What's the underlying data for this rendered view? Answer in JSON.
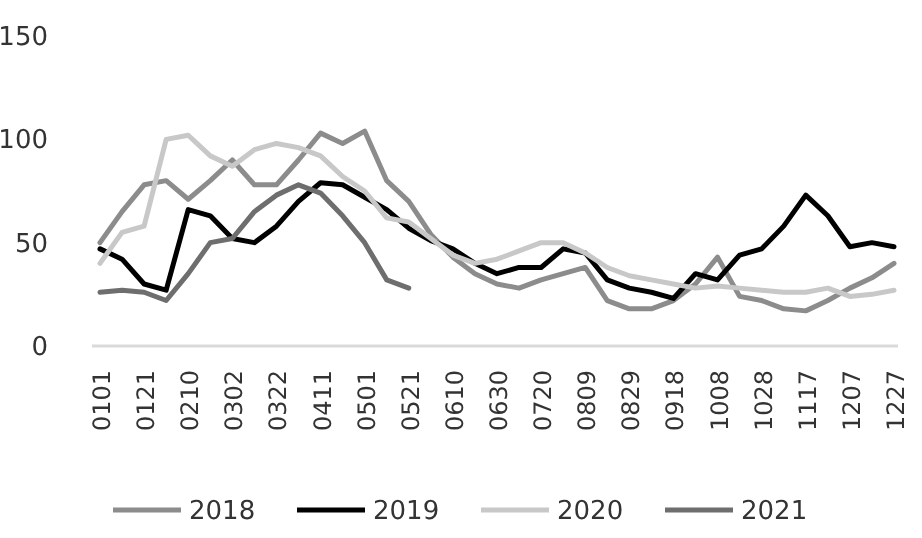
{
  "chart_data": {
    "type": "line",
    "categories": [
      "0101",
      null,
      "0121",
      null,
      "0210",
      null,
      "0302",
      null,
      "0322",
      null,
      "0411",
      null,
      "0501",
      null,
      "0521",
      null,
      "0610",
      null,
      "0630",
      null,
      "0720",
      null,
      "0809",
      null,
      "0829",
      null,
      "0918",
      null,
      "1008",
      null,
      "1028",
      null,
      "1117",
      null,
      "1207",
      null,
      "1227"
    ],
    "ylim": [
      0,
      150
    ],
    "yticks": [
      0,
      50,
      100,
      150
    ],
    "grid": false,
    "legend": "bottom",
    "marker": "none",
    "line_style": "solid",
    "series": [
      {
        "name": "2018",
        "color": "#8c8c8c",
        "values": [
          50,
          65,
          78,
          80,
          71,
          80,
          90,
          78,
          78,
          90,
          103,
          98,
          104,
          80,
          70,
          54,
          43,
          35,
          30,
          28,
          32,
          35,
          38,
          22,
          18,
          18,
          22,
          30,
          43,
          24,
          22,
          18,
          17,
          22,
          28,
          33,
          40
        ]
      },
      {
        "name": "2019",
        "color": "#000000",
        "values": [
          47,
          42,
          30,
          27,
          66,
          63,
          52,
          50,
          58,
          70,
          79,
          78,
          72,
          66,
          57,
          51,
          47,
          40,
          35,
          38,
          38,
          47,
          45,
          32,
          28,
          26,
          23,
          35,
          32,
          44,
          47,
          58,
          73,
          63,
          48,
          50,
          48
        ]
      },
      {
        "name": "2020",
        "color": "#c8c8c8",
        "values": [
          40,
          55,
          58,
          100,
          102,
          92,
          87,
          95,
          98,
          96,
          92,
          82,
          75,
          62,
          60,
          52,
          44,
          40,
          42,
          46,
          50,
          50,
          45,
          38,
          34,
          32,
          30,
          28,
          29,
          28,
          27,
          26,
          26,
          28,
          24,
          25,
          27
        ]
      },
      {
        "name": "2021",
        "color": "#6e6e6e",
        "values": [
          26,
          27,
          26,
          22,
          35,
          50,
          52,
          65,
          73,
          78,
          74,
          63,
          50,
          32,
          28,
          null,
          null,
          null,
          null,
          null,
          null,
          null,
          null,
          null,
          null,
          null,
          null,
          null,
          null,
          null,
          null,
          null,
          null,
          null,
          null,
          null,
          null
        ]
      }
    ]
  }
}
